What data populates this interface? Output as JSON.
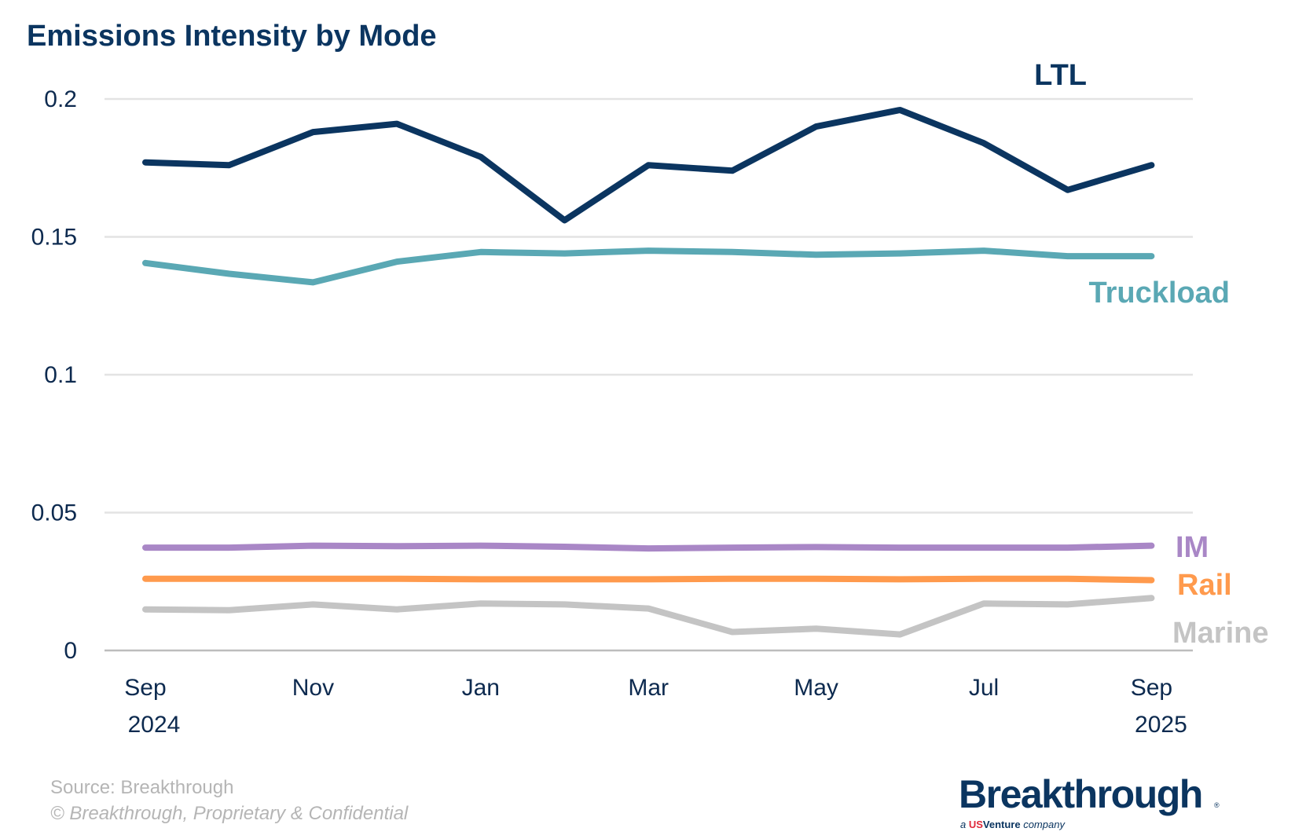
{
  "chart_data": {
    "type": "line",
    "title": "Emissions Intensity by Mode",
    "x": [
      "Sep 2024",
      "Oct 2024",
      "Nov 2024",
      "Dec 2024",
      "Jan 2025",
      "Feb 2025",
      "Mar 2025",
      "Apr 2025",
      "May 2025",
      "Jun 2025",
      "Jul 2025",
      "Aug 2025",
      "Sep 2025"
    ],
    "x_tick_labels": [
      {
        "index": 0,
        "line1": "Sep",
        "line2": "2024"
      },
      {
        "index": 2,
        "line1": "Nov",
        "line2": ""
      },
      {
        "index": 4,
        "line1": "Jan",
        "line2": ""
      },
      {
        "index": 6,
        "line1": "Mar",
        "line2": ""
      },
      {
        "index": 8,
        "line1": "May",
        "line2": ""
      },
      {
        "index": 10,
        "line1": "Jul",
        "line2": ""
      },
      {
        "index": 12,
        "line1": "Sep",
        "line2": "2025"
      }
    ],
    "ylim": [
      0,
      0.2
    ],
    "y_ticks": [
      0,
      0.05,
      0.1,
      0.15,
      0.2
    ],
    "y_tick_labels": [
      "0",
      "0.05",
      "0.1",
      "0.15",
      "0.2"
    ],
    "grid": true,
    "legend": "direct labels at right",
    "series": [
      {
        "name": "LTL",
        "color": "#0b3560",
        "values": [
          0.177,
          0.176,
          0.188,
          0.191,
          0.179,
          0.156,
          0.176,
          0.174,
          0.19,
          0.196,
          0.184,
          0.167,
          0.176
        ]
      },
      {
        "name": "Truckload",
        "color": "#5aa8b4",
        "values": [
          0.1405,
          0.1366,
          0.1335,
          0.141,
          0.1445,
          0.144,
          0.145,
          0.1445,
          0.1435,
          0.144,
          0.145,
          0.143,
          0.143
        ]
      },
      {
        "name": "IM",
        "color": "#a987c6",
        "values": [
          0.0373,
          0.0373,
          0.038,
          0.0378,
          0.038,
          0.0376,
          0.037,
          0.0373,
          0.0375,
          0.0373,
          0.0373,
          0.0373,
          0.038
        ]
      },
      {
        "name": "Rail",
        "color": "#ff9a4d",
        "values": [
          0.026,
          0.026,
          0.026,
          0.026,
          0.0258,
          0.0258,
          0.0258,
          0.026,
          0.026,
          0.0258,
          0.026,
          0.026,
          0.0255
        ]
      },
      {
        "name": "Marine",
        "color": "#c4c4c4",
        "values": [
          0.0149,
          0.0146,
          0.0167,
          0.0149,
          0.017,
          0.0167,
          0.0152,
          0.0067,
          0.0079,
          0.0058,
          0.017,
          0.0167,
          0.019
        ]
      }
    ]
  },
  "footer": {
    "source": "Source: Breakthrough",
    "copyright": "© Breakthrough, Proprietary & Confidential"
  },
  "logo": {
    "name": "Breakthrough",
    "tagline": "a USVenture company"
  }
}
